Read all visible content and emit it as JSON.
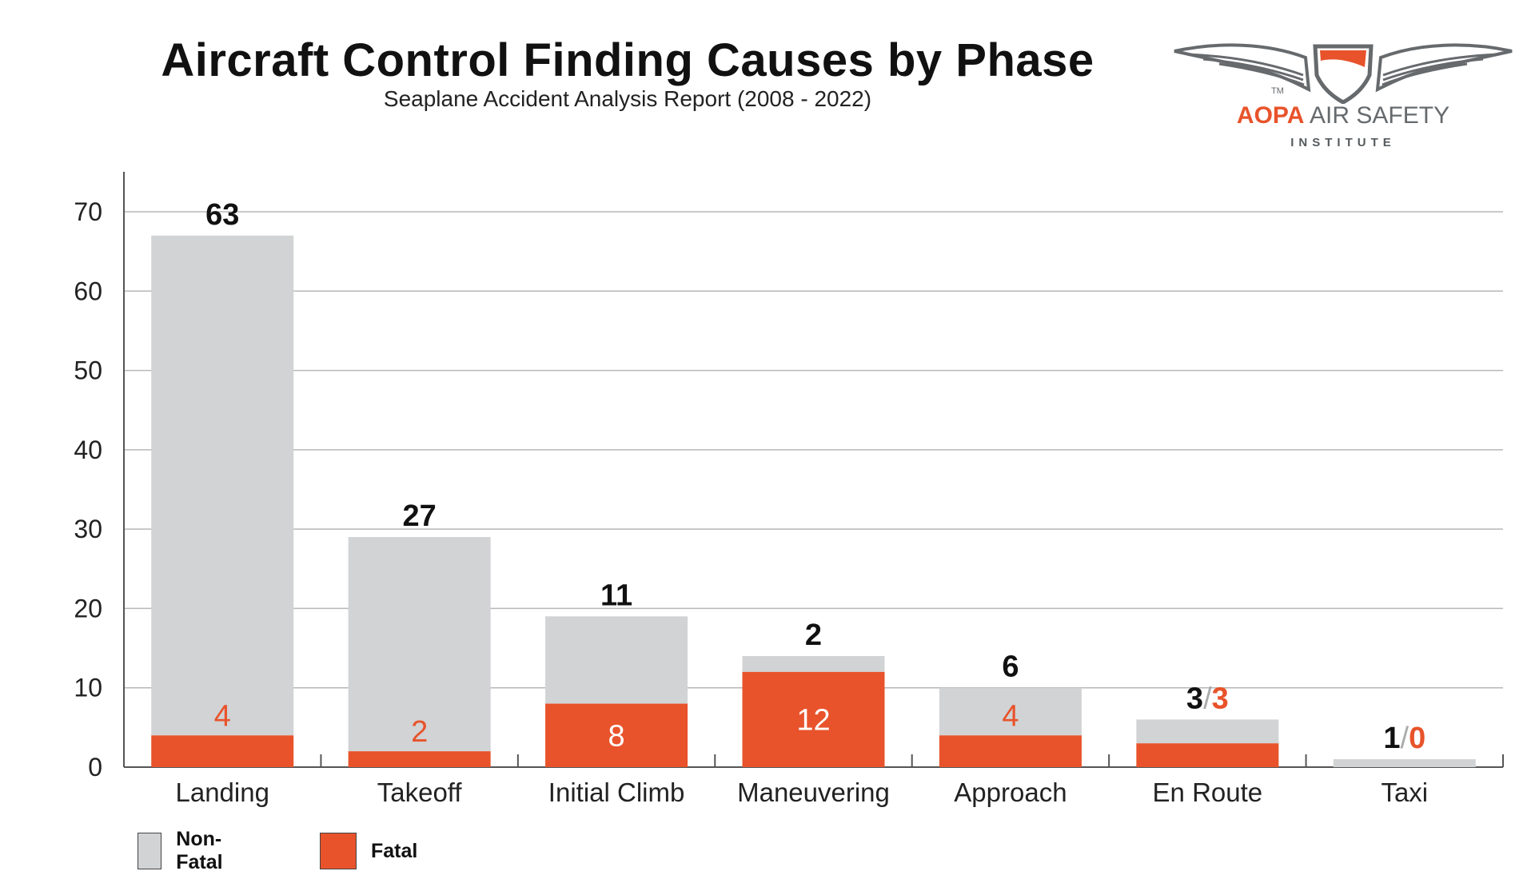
{
  "header": {
    "title": "Aircraft Control Finding Causes by Phase",
    "subtitle": "Seaplane Accident Analysis Report (2008 - 2022)"
  },
  "logo": {
    "icon": "winged-shield-icon",
    "brand": "AOPA",
    "name": " AIR SAFETY",
    "tm": "TM",
    "sub": "INSTITUTE"
  },
  "colors": {
    "non_fatal": "#d1d3d4",
    "fatal": "#e8532b",
    "grid": "#b7b7b7",
    "axis": "#555555",
    "text": "#111111"
  },
  "chart_data": {
    "type": "bar",
    "stacked": true,
    "categories": [
      "Landing",
      "Takeoff",
      "Initial Climb",
      "Maneuvering",
      "Approach",
      "En Route",
      "Taxi"
    ],
    "series": [
      {
        "name": "Fatal",
        "values": [
          4,
          2,
          8,
          12,
          4,
          3,
          0
        ]
      },
      {
        "name": "Non-Fatal",
        "values": [
          63,
          27,
          11,
          2,
          6,
          3,
          1
        ]
      }
    ],
    "ylim": [
      0,
      70
    ],
    "yticks": [
      "0",
      "10",
      "20",
      "30",
      "40",
      "50",
      "60",
      "70"
    ],
    "xlabel": "",
    "ylabel": "",
    "grid": true,
    "legend_position": "bottom-left",
    "data_labels": {
      "non_fatal_above": [
        "63",
        "27",
        "11",
        "2",
        "6",
        "3",
        "1"
      ],
      "fatal_inside": [
        "4",
        "2",
        "8",
        "12",
        "4",
        "",
        ""
      ],
      "combined_above": [
        "",
        "",
        "",
        "",
        "",
        "3",
        "0"
      ]
    }
  },
  "legend": {
    "items": [
      {
        "label": "Non-Fatal"
      },
      {
        "label": "Fatal"
      }
    ]
  }
}
